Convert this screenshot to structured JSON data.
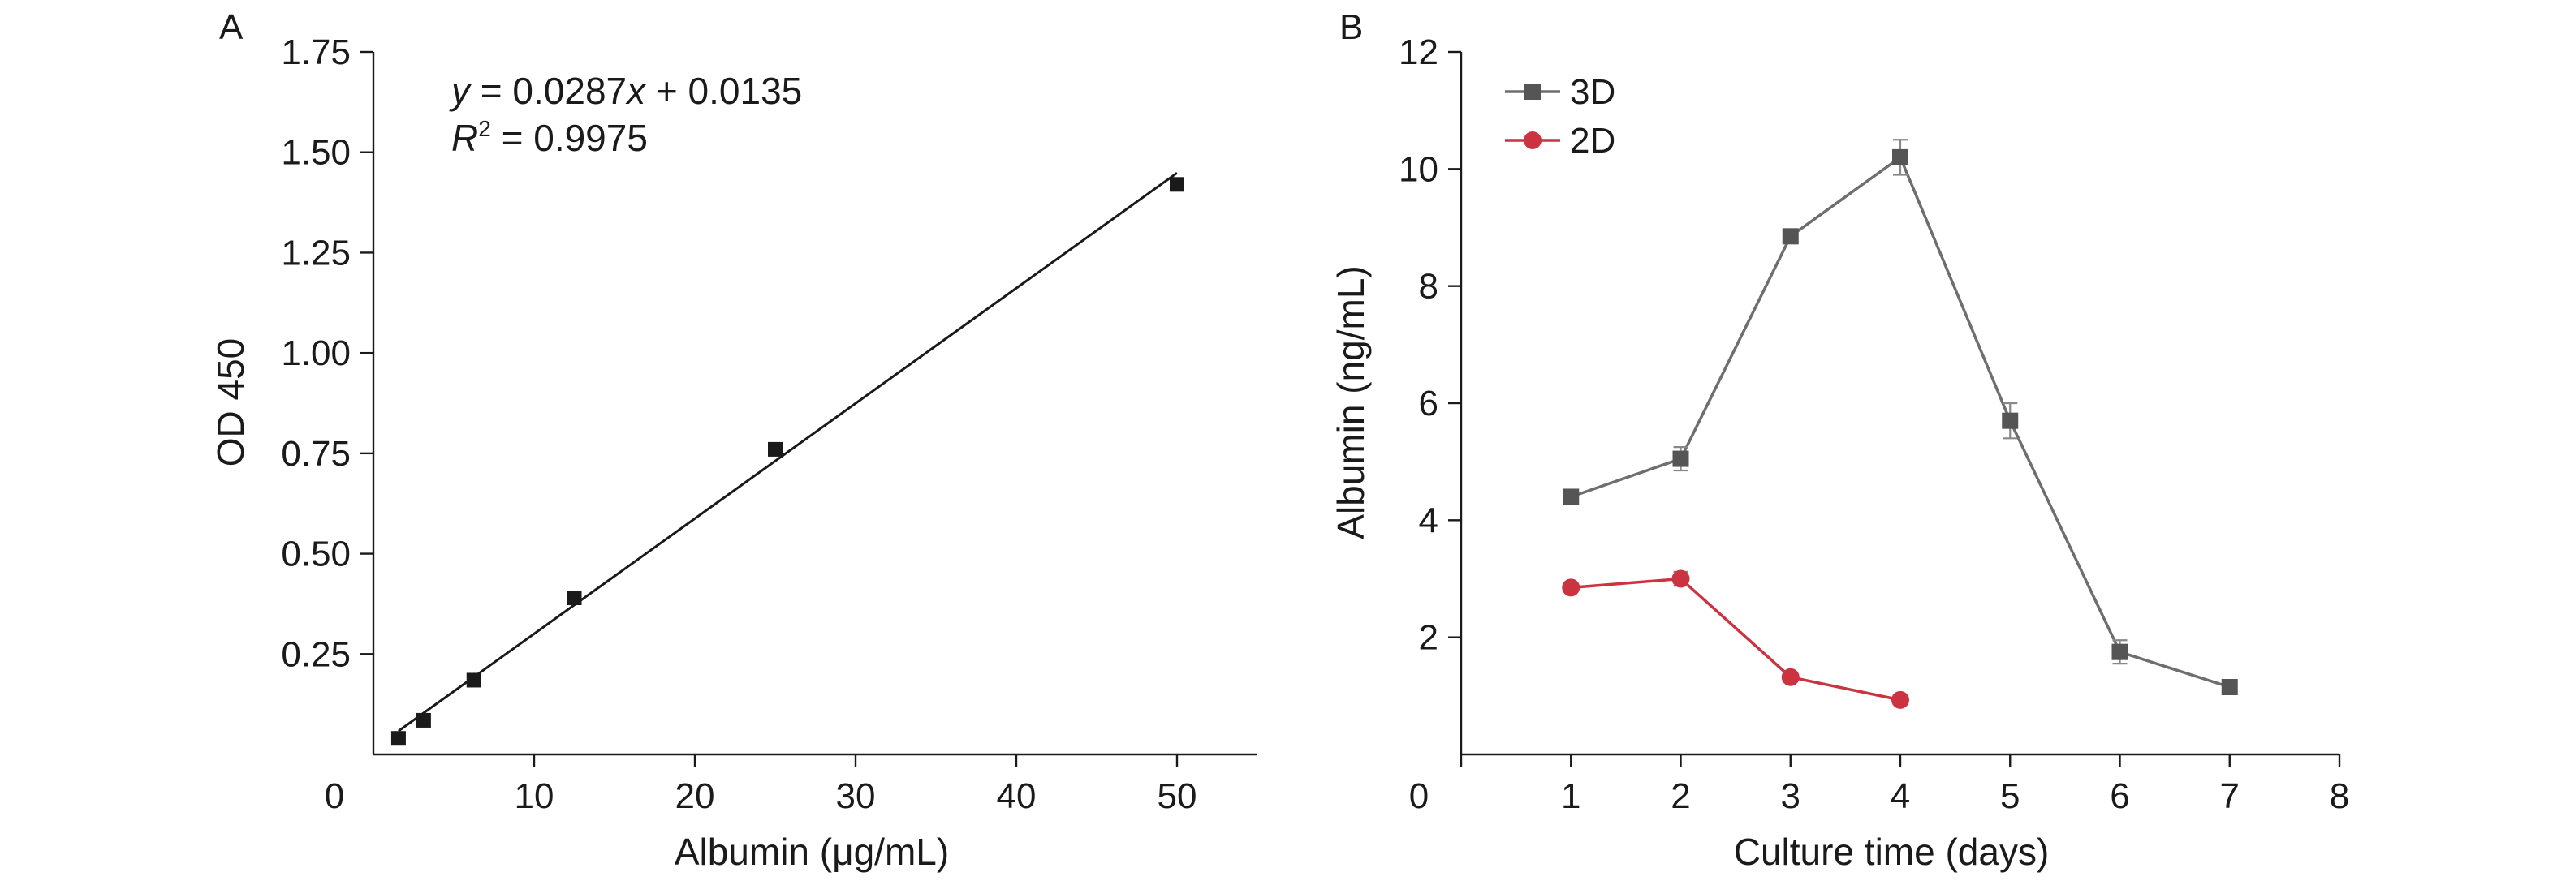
{
  "chart_data": [
    {
      "panel": "A",
      "type": "scatter",
      "xlabel": "Albumin (μg/mL)",
      "ylabel": "OD 450",
      "xlim": [
        0,
        55
      ],
      "ylim": [
        0,
        1.75
      ],
      "x_ticks": [
        0,
        10,
        20,
        30,
        40,
        50
      ],
      "y_ticks": [
        0.25,
        0.5,
        0.75,
        1.0,
        1.25,
        1.5,
        1.75
      ],
      "y_tick_labels": [
        "0.25",
        "0.50",
        "0.75",
        "1.00",
        "1.25",
        "1.50",
        "1.75"
      ],
      "x_origin_label": "0",
      "points": {
        "x": [
          1.5625,
          3.125,
          6.25,
          12.5,
          25,
          50
        ],
        "y": [
          0.04,
          0.085,
          0.185,
          0.39,
          0.76,
          1.42
        ]
      },
      "fit": {
        "slope": 0.0287,
        "intercept": 0.0135,
        "x_range": [
          1.5625,
          50
        ]
      },
      "equation_parts": [
        "y",
        " = 0.0287",
        "x",
        " + 0.0135"
      ],
      "r2_parts": [
        "R",
        "2",
        " = 0.9975"
      ],
      "colors": {
        "marker": "#1a1a1a",
        "line": "#1a1a1a"
      },
      "grid": false
    },
    {
      "panel": "B",
      "type": "line",
      "xlabel": "Culture time (days)",
      "ylabel": "Albumin (ng/mL)",
      "xlim": [
        0,
        8
      ],
      "ylim": [
        0,
        12
      ],
      "x_ticks": [
        0,
        1,
        2,
        3,
        4,
        5,
        6,
        7,
        8
      ],
      "y_ticks": [
        2,
        4,
        6,
        8,
        10,
        12
      ],
      "x_origin_label": "0",
      "series": [
        {
          "name": "3D",
          "color": "#555555",
          "line_color": "#6e6e6e",
          "marker": "square",
          "x": [
            1,
            2,
            3,
            4,
            5,
            6,
            7
          ],
          "y": [
            4.4,
            5.05,
            8.85,
            10.2,
            5.7,
            1.75,
            1.15
          ],
          "error": [
            0.1,
            0.2,
            0.1,
            0.3,
            0.3,
            0.2,
            0.1
          ]
        },
        {
          "name": "2D",
          "color": "#cc3340",
          "line_color": "#cc3340",
          "marker": "circle",
          "x": [
            1,
            2,
            3,
            4
          ],
          "y": [
            2.85,
            3.0,
            1.32,
            0.93
          ],
          "error": [
            0.05,
            0.12,
            0.08,
            0.05
          ]
        }
      ],
      "legend": "top-left",
      "grid": false
    }
  ]
}
